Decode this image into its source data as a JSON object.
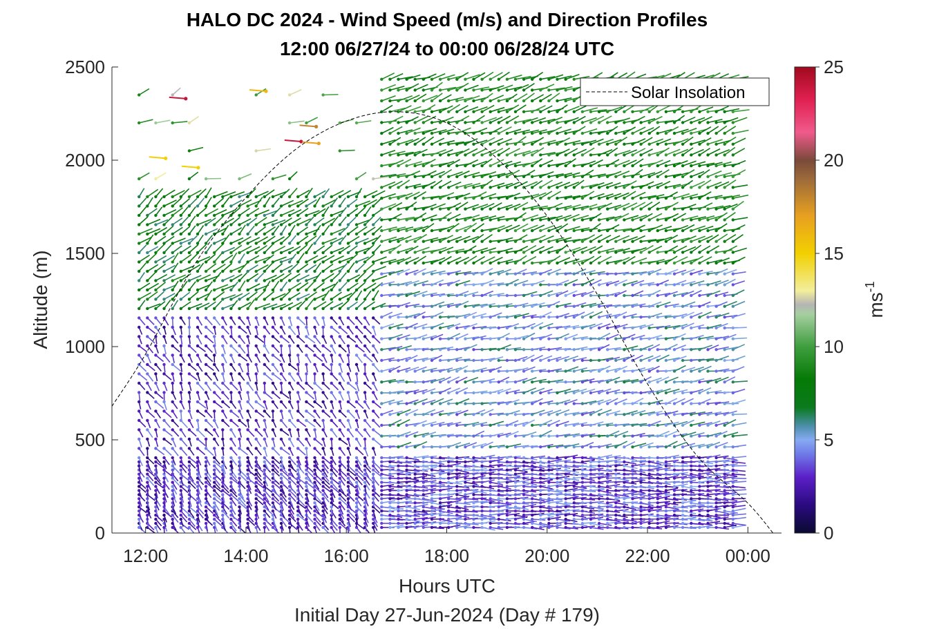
{
  "chart_data": {
    "type": "scatter",
    "title": "HALO DC 2024 - Wind Speed (m/s) and Direction Profiles",
    "subtitle": "12:00 06/27/24 to 00:00 06/28/24  UTC",
    "xlabel": "Hours UTC",
    "xlabel_secondary": "Initial Day 27-Jun-2024 (Day # 179)",
    "ylabel": "Altitude (m)",
    "colorbar_label": "ms-1",
    "colorbar_label_base": "ms",
    "colorbar_label_exp": "-1",
    "x_ticks": [
      "12:00",
      "14:00",
      "16:00",
      "18:00",
      "20:00",
      "22:00",
      "00:00"
    ],
    "x_tick_hours": [
      12,
      14,
      16,
      18,
      20,
      22,
      24
    ],
    "xlim_hours": [
      11.33,
      24.67
    ],
    "y_ticks": [
      "0",
      "500",
      "1000",
      "1500",
      "2000",
      "2500"
    ],
    "y_tick_values": [
      0,
      500,
      1000,
      1500,
      2000,
      2500
    ],
    "ylim": [
      0,
      2500
    ],
    "colorbar_ticks": [
      "0",
      "5",
      "10",
      "15",
      "20",
      "25"
    ],
    "colorbar_tick_values": [
      0,
      5,
      10,
      15,
      20,
      25
    ],
    "colorbar_range": [
      0,
      25
    ],
    "legend": {
      "label": "Solar Insolation",
      "position": "top-right"
    },
    "profile_time_range_hours": [
      11.87,
      23.77
    ],
    "profile_interval_minutes": 10,
    "altitude_range_sampled": [
      30,
      2500
    ],
    "solar_insolation_curve": {
      "x_hours": [
        11.33,
        12.0,
        13.0,
        14.0,
        15.0,
        16.0,
        17.0,
        18.0,
        19.0,
        20.0,
        21.0,
        22.0,
        23.0,
        24.0,
        24.5
      ],
      "y_altitude": [
        680,
        960,
        1450,
        1800,
        2060,
        2210,
        2260,
        2200,
        2010,
        1700,
        1280,
        800,
        410,
        160,
        0
      ]
    },
    "wind_regimes": [
      {
        "time_hours": [
          11.8,
          16.6
        ],
        "altitude_m": [
          0,
          1200
        ],
        "speed_ms": 3.0,
        "direction_deg": 200
      },
      {
        "time_hours": [
          11.8,
          16.6
        ],
        "altitude_m": [
          1200,
          1850
        ],
        "speed_ms": 7.5,
        "direction_deg": 320
      },
      {
        "time_hours": [
          16.6,
          24.0
        ],
        "altitude_m": [
          0,
          450
        ],
        "speed_ms": 3.5,
        "direction_deg": 270
      },
      {
        "time_hours": [
          16.6,
          24.0
        ],
        "altitude_m": [
          450,
          1400
        ],
        "speed_ms": 5.0,
        "direction_deg": 290
      },
      {
        "time_hours": [
          16.6,
          24.0
        ],
        "altitude_m": [
          1400,
          2500
        ],
        "speed_ms": 8.5,
        "direction_deg": 300
      }
    ],
    "notable_points": [
      {
        "time_hours": 12.8,
        "altitude_m": 2330,
        "speed_ms": 24
      },
      {
        "time_hours": 14.4,
        "altitude_m": 2370,
        "speed_ms": 16
      },
      {
        "time_hours": 15.1,
        "altitude_m": 2100,
        "speed_ms": 24
      },
      {
        "time_hours": 15.4,
        "altitude_m": 2180,
        "speed_ms": 18
      },
      {
        "time_hours": 15.45,
        "altitude_m": 2090,
        "speed_ms": 17
      },
      {
        "time_hours": 13.05,
        "altitude_m": 1960,
        "speed_ms": 15
      },
      {
        "time_hours": 12.4,
        "altitude_m": 2010,
        "speed_ms": 15
      }
    ]
  }
}
